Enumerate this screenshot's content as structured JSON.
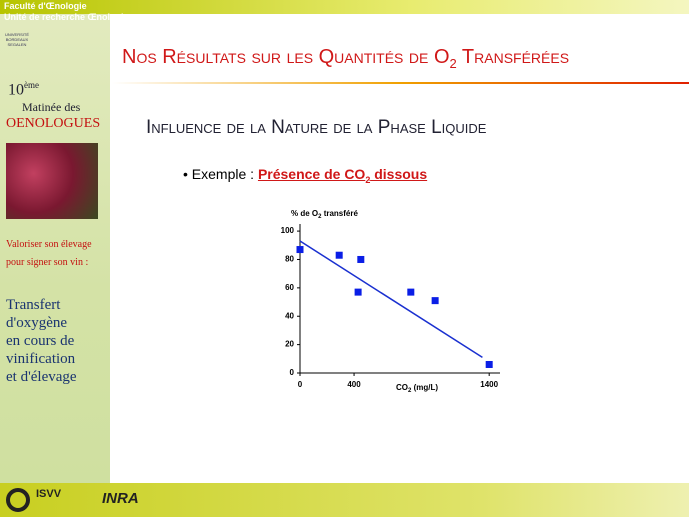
{
  "header": {
    "line1": "Faculté d'Œnologie",
    "line2": "Unité de recherche Œnologie"
  },
  "sidebar": {
    "university": [
      "UNIVERSITÉ",
      "BORDEAUX",
      "SEGALEN"
    ],
    "edition": "10",
    "edition_sup": "ème",
    "event1": "Matinée des",
    "event2": "OENOLOGUES",
    "slogan1": "Valoriser son élevage",
    "slogan2": "pour signer son vin :",
    "topic": [
      "Transfert",
      "d'oxygène",
      "en cours de",
      "vinification",
      "et d'élevage"
    ]
  },
  "slide": {
    "title": [
      "Nos Résultats sur les Quantités de O",
      "2",
      " Transférées"
    ],
    "subtitle": "Influence de la Nature de la Phase Liquide",
    "bullet": "• Exemple : ",
    "highlight": [
      "Présence de CO",
      "2",
      " dissous"
    ]
  },
  "footer": {
    "isvv": "ISVV",
    "inra": "INRA"
  },
  "chart_data": {
    "type": "scatter",
    "y_label": [
      "% de O",
      "2",
      " transféré"
    ],
    "x_label": [
      "CO",
      "2",
      " (mg/L)"
    ],
    "x": [
      0,
      290,
      450,
      430,
      820,
      1000,
      1400
    ],
    "values": [
      87,
      83,
      80,
      57,
      57,
      51,
      6
    ],
    "color": "#0a1ee6",
    "trendline": {
      "x": [
        0,
        1350
      ],
      "values": [
        93,
        11
      ],
      "color": "#1a30d0"
    },
    "xlim": [
      0,
      1480
    ],
    "ylim": [
      0,
      105
    ],
    "xticks": [
      0,
      400,
      1400
    ],
    "yticks": [
      0,
      20,
      40,
      60,
      80,
      100
    ]
  }
}
